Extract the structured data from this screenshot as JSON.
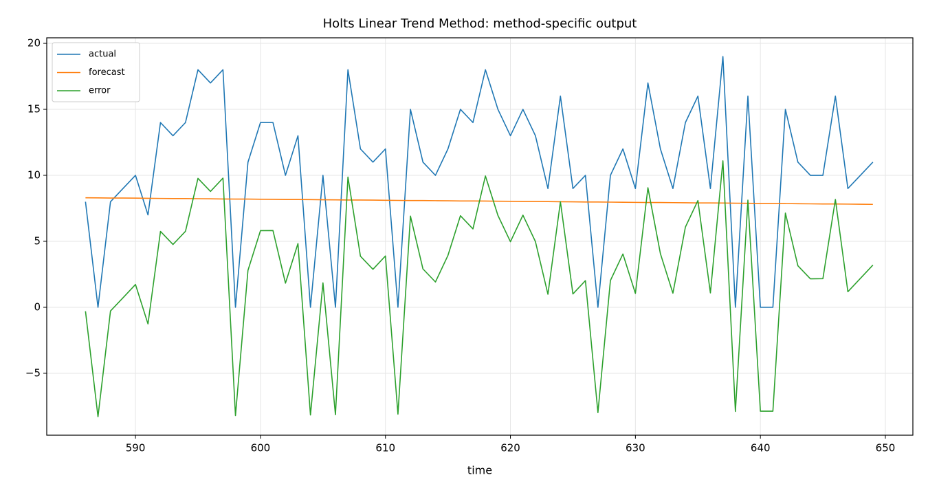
{
  "chart_data": {
    "type": "line",
    "title": "Holts Linear Trend Method: method-specific output",
    "x_label": "time",
    "x": [
      586,
      587,
      588,
      589,
      590,
      591,
      592,
      593,
      594,
      595,
      596,
      597,
      598,
      599,
      600,
      601,
      602,
      603,
      604,
      605,
      606,
      607,
      608,
      609,
      610,
      611,
      612,
      613,
      614,
      615,
      616,
      617,
      618,
      619,
      620,
      621,
      622,
      623,
      624,
      625,
      626,
      627,
      628,
      629,
      630,
      631,
      632,
      633,
      634,
      635,
      636,
      637,
      638,
      639,
      640,
      641,
      642,
      643,
      644,
      645,
      646,
      647,
      648,
      649
    ],
    "series": [
      {
        "name": "actual",
        "color": "#1f77b4",
        "values": [
          8,
          0,
          8,
          9,
          10,
          7,
          14,
          13,
          14,
          18,
          17,
          18,
          0,
          11,
          14,
          14,
          10,
          13,
          0,
          10,
          0,
          18,
          12,
          11,
          12,
          0,
          15,
          11,
          10,
          12,
          15,
          14,
          18,
          15,
          13,
          15,
          13,
          9,
          16,
          9,
          10,
          0,
          10,
          12,
          9,
          17,
          12,
          9,
          14,
          16,
          9,
          19,
          0,
          16,
          0,
          0,
          15,
          11,
          10,
          10,
          16,
          9,
          10,
          11
        ]
      },
      {
        "name": "forecast",
        "color": "#ff7f0e",
        "values": [
          8.3,
          8.29,
          8.28,
          8.28,
          8.27,
          8.26,
          8.25,
          8.24,
          8.24,
          8.23,
          8.22,
          8.21,
          8.2,
          8.2,
          8.19,
          8.18,
          8.17,
          8.17,
          8.16,
          8.15,
          8.14,
          8.13,
          8.13,
          8.12,
          8.11,
          8.1,
          8.09,
          8.09,
          8.08,
          8.07,
          8.06,
          8.06,
          8.05,
          8.04,
          8.03,
          8.02,
          8.02,
          8.01,
          8.0,
          7.99,
          7.98,
          7.98,
          7.97,
          7.96,
          7.95,
          7.94,
          7.94,
          7.93,
          7.92,
          7.91,
          7.91,
          7.9,
          7.89,
          7.88,
          7.87,
          7.87,
          7.86,
          7.85,
          7.84,
          7.83,
          7.83,
          7.82,
          7.81,
          7.8
        ]
      },
      {
        "name": "error",
        "color": "#2ca02c",
        "values": [
          -0.3,
          -8.29,
          -0.28,
          0.72,
          1.73,
          -1.26,
          5.75,
          4.76,
          5.76,
          9.77,
          8.78,
          9.79,
          -8.2,
          2.8,
          5.81,
          5.82,
          1.83,
          4.83,
          -8.16,
          1.85,
          -8.14,
          9.87,
          3.87,
          2.88,
          3.89,
          -8.1,
          6.91,
          2.91,
          1.92,
          3.93,
          6.94,
          5.94,
          9.95,
          6.96,
          4.97,
          6.98,
          4.98,
          0.99,
          8.0,
          1.01,
          2.02,
          -7.98,
          2.03,
          4.04,
          1.05,
          9.06,
          4.06,
          1.07,
          6.08,
          8.09,
          1.09,
          11.1,
          -7.89,
          8.12,
          -7.87,
          -7.87,
          7.14,
          3.15,
          2.16,
          2.17,
          8.17,
          1.18,
          2.19,
          3.2
        ]
      }
    ],
    "xlim": [
      582.9,
      652.2
    ],
    "ylim": [
      -9.69,
      20.42
    ],
    "xticks": [
      590,
      600,
      610,
      620,
      630,
      640,
      650
    ],
    "yticks": [
      {
        "value": -5,
        "label": "−5"
      },
      0,
      5,
      10,
      15,
      20
    ],
    "grid": true,
    "legend": "upper-left"
  }
}
